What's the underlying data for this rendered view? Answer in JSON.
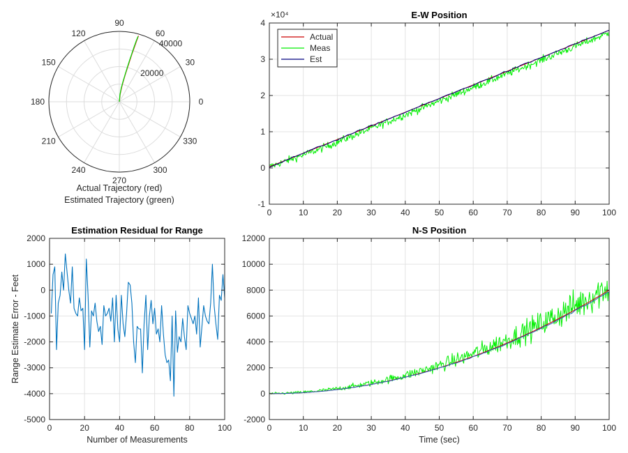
{
  "chart_data": [
    {
      "id": "polar",
      "type": "polar",
      "title": "",
      "caption_lines": [
        "Actual Trajectory (red)",
        "Estimated Trajectory (green)"
      ],
      "angle_ticks_deg": [
        0,
        30,
        60,
        90,
        120,
        150,
        180,
        210,
        240,
        270,
        300,
        330
      ],
      "radial_ticks": [
        20000,
        40000
      ],
      "rmax": 40000,
      "series": [
        {
          "name": "Actual",
          "color": "#e41a1c",
          "points": [
            [
              86,
              0
            ],
            [
              84,
              4000
            ],
            [
              81,
              8000
            ],
            [
              79,
              12000
            ],
            [
              77.5,
              16000
            ],
            [
              76.5,
              20000
            ],
            [
              75.8,
              24000
            ],
            [
              75.2,
              28000
            ],
            [
              74.6,
              32000
            ],
            [
              74.2,
              36000
            ],
            [
              73.8,
              39000
            ]
          ]
        },
        {
          "name": "Estimated",
          "color": "#00dd00",
          "points": [
            [
              88,
              0
            ],
            [
              85,
              4000
            ],
            [
              82,
              8000
            ],
            [
              79.5,
              12000
            ],
            [
              78,
              16000
            ],
            [
              77,
              20000
            ],
            [
              76.2,
              24000
            ],
            [
              75.5,
              28000
            ],
            [
              75,
              32000
            ],
            [
              74.5,
              36000
            ],
            [
              74,
              38700
            ]
          ]
        }
      ]
    },
    {
      "id": "ew",
      "type": "line",
      "title": "E-W Position",
      "xlabel": "",
      "ylabel": "",
      "exponent_label": "×10⁴",
      "xlim": [
        0,
        100
      ],
      "ylim": [
        -1,
        4
      ],
      "xticks": [
        0,
        10,
        20,
        30,
        40,
        50,
        60,
        70,
        80,
        90,
        100
      ],
      "yticks": [
        -1,
        0,
        1,
        2,
        3,
        4
      ],
      "legend": [
        "Actual",
        "Meas",
        "Est"
      ],
      "legend_position": "top-left",
      "series": [
        {
          "name": "Actual",
          "color": "#cc0000",
          "x": [
            0,
            100
          ],
          "y": [
            0.03,
            3.8
          ]
        },
        {
          "name": "Meas",
          "color": "#00ee00",
          "noise": 0.1,
          "bias": -0.07,
          "x": [
            0,
            100
          ],
          "y": [
            0.03,
            3.8
          ]
        },
        {
          "name": "Est",
          "color": "#000080",
          "x": [
            0,
            100
          ],
          "y": [
            0.03,
            3.8
          ]
        }
      ]
    },
    {
      "id": "resid",
      "type": "line",
      "title": "Estimation Residual for Range",
      "xlabel": "Number of Measurements",
      "ylabel": "Range Estimate Error - Feet",
      "xlim": [
        0,
        100
      ],
      "ylim": [
        -5000,
        2000
      ],
      "xticks": [
        0,
        20,
        40,
        60,
        80,
        100
      ],
      "yticks": [
        -5000,
        -4000,
        -3000,
        -2000,
        -1000,
        0,
        1000,
        2000
      ],
      "series": [
        {
          "name": "Residual",
          "color": "#0072bd",
          "x": [
            1,
            2,
            3,
            4,
            5,
            6,
            7,
            8,
            9,
            10,
            11,
            12,
            13,
            14,
            15,
            16,
            17,
            18,
            19,
            20,
            21,
            22,
            23,
            24,
            25,
            26,
            27,
            28,
            29,
            30,
            31,
            32,
            33,
            34,
            35,
            36,
            37,
            38,
            39,
            40,
            41,
            42,
            43,
            44,
            45,
            46,
            47,
            48,
            49,
            50,
            51,
            52,
            53,
            54,
            55,
            56,
            57,
            58,
            59,
            60,
            61,
            62,
            63,
            64,
            65,
            66,
            67,
            68,
            69,
            70,
            71,
            72,
            73,
            74,
            75,
            76,
            77,
            78,
            79,
            80,
            81,
            82,
            83,
            84,
            85,
            86,
            87,
            88,
            89,
            90,
            91,
            92,
            93,
            94,
            95,
            96,
            97,
            98,
            99,
            100
          ],
          "y": [
            -900,
            600,
            900,
            -2300,
            -500,
            -200,
            700,
            0,
            1400,
            700,
            0,
            -500,
            900,
            -700,
            -900,
            -1000,
            -300,
            -800,
            -700,
            -2300,
            1200,
            -200,
            -2200,
            -800,
            -1000,
            -500,
            -1200,
            -1600,
            -1400,
            -2100,
            -600,
            -1000,
            -900,
            -700,
            -1200,
            -300,
            -2000,
            -200,
            -1500,
            -2000,
            -200,
            -1300,
            -1800,
            -900,
            300,
            200,
            -500,
            -2000,
            -2800,
            -1400,
            -1500,
            -1500,
            -3200,
            -1300,
            -200,
            -2300,
            -1000,
            -400,
            -1300,
            -700,
            -1700,
            -1500,
            -2000,
            -600,
            -1700,
            -2500,
            -2800,
            -2700,
            -3500,
            -1000,
            -4100,
            -800,
            -2400,
            -1800,
            -2000,
            -1100,
            -1800,
            -2300,
            -600,
            -900,
            -1100,
            -1300,
            -1000,
            -1700,
            -300,
            -2200,
            -1400,
            -600,
            -1000,
            -1200,
            -1300,
            -500,
            1000,
            -600,
            -1300,
            -1900,
            -200,
            -400,
            600,
            -300
          ]
        }
      ]
    },
    {
      "id": "ns",
      "type": "line",
      "title": "N-S Position",
      "xlabel": "Time (sec)",
      "ylabel": "",
      "xlim": [
        0,
        100
      ],
      "ylim": [
        -2000,
        12000
      ],
      "xticks": [
        0,
        10,
        20,
        30,
        40,
        50,
        60,
        70,
        80,
        90,
        100
      ],
      "yticks": [
        -2000,
        0,
        2000,
        4000,
        6000,
        8000,
        10000,
        12000
      ],
      "series": [
        {
          "name": "Actual",
          "color": "#cc0000",
          "formula": "quad",
          "y_end": 8000
        },
        {
          "name": "Meas",
          "color": "#00ee00",
          "formula": "quad_noise",
          "y_end": 8000
        },
        {
          "name": "Est",
          "color": "#1f5fb8",
          "formula": "quad",
          "y_end": 7900
        }
      ]
    }
  ]
}
